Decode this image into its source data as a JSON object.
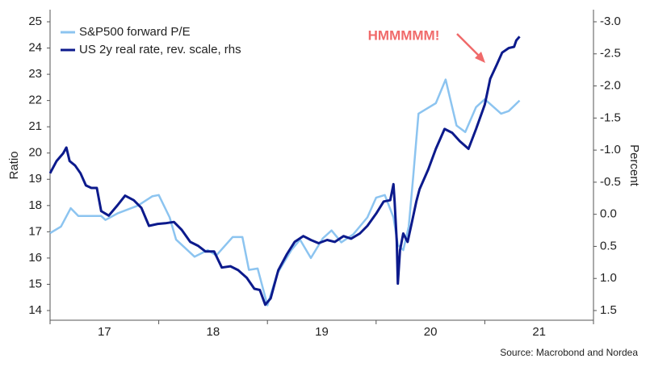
{
  "chart_data": {
    "type": "line",
    "ylabel": "Ratio",
    "y2label": "Percent",
    "annotation": "HMMMMM!",
    "source": "Source: Macrobond and Nordea",
    "xlim": [
      2017,
      2022
    ],
    "xticks": [
      2017,
      2018,
      2019,
      2020,
      2021,
      2022
    ],
    "xtick_labels": [
      {
        "value": 2017.5,
        "label": "17"
      },
      {
        "value": 2018.5,
        "label": "18"
      },
      {
        "value": 2019.5,
        "label": "19"
      },
      {
        "value": 2020.5,
        "label": "20"
      },
      {
        "value": 2021.5,
        "label": "21"
      }
    ],
    "ylim": [
      14,
      25
    ],
    "yticks": [
      14,
      15,
      16,
      17,
      18,
      19,
      20,
      21,
      22,
      23,
      24,
      25
    ],
    "y2lim": [
      1.5,
      -3.0
    ],
    "y2ticks": [
      {
        "value": -3,
        "label": "-3.0"
      },
      -2.5,
      {
        "value": -2,
        "label": "-2.0"
      },
      -1.5,
      {
        "value": -1,
        "label": "-1.0"
      },
      -0.5,
      {
        "value": 0,
        "label": "0.0"
      },
      0.5,
      {
        "value": 1,
        "label": "1.0"
      },
      1.5
    ],
    "grid": false,
    "legend": "upper left",
    "series": [
      {
        "name": "S&P500 forward P/E",
        "color": "#8cc4f0",
        "x": [
          2017.0,
          2017.1,
          2017.19,
          2017.26,
          2017.47,
          2017.51,
          2017.62,
          2017.81,
          2017.94,
          2018.0,
          2018.1,
          2018.16,
          2018.33,
          2018.45,
          2018.53,
          2018.68,
          2018.77,
          2018.83,
          2018.91,
          2019.0,
          2019.09,
          2019.22,
          2019.3,
          2019.4,
          2019.51,
          2019.59,
          2019.68,
          2019.79,
          2019.92,
          2020.0,
          2020.08,
          2020.16,
          2020.2,
          2020.25,
          2020.3,
          2020.34,
          2020.39,
          2020.55,
          2020.64,
          2020.74,
          2020.82,
          2020.92,
          2021.0,
          2021.15,
          2021.22,
          2021.32
        ],
        "values": [
          16.95,
          17.2,
          17.9,
          17.6,
          17.6,
          17.45,
          17.7,
          18.0,
          18.35,
          18.4,
          17.55,
          16.7,
          16.05,
          16.3,
          16.1,
          16.8,
          16.8,
          15.55,
          15.6,
          14.2,
          15.4,
          16.3,
          16.7,
          16.0,
          16.75,
          17.05,
          16.6,
          16.9,
          17.55,
          18.3,
          18.4,
          17.55,
          16.5,
          16.3,
          17.2,
          19.05,
          21.5,
          21.9,
          22.8,
          21.05,
          20.8,
          21.75,
          22.05,
          21.5,
          21.6,
          22.0
        ]
      },
      {
        "name": "US 2y real rate, rev. scale, rhs",
        "color": "#0c1a8c",
        "axis": "y2",
        "x": [
          2017.0,
          2017.06,
          2017.12,
          2017.15,
          2017.18,
          2017.23,
          2017.28,
          2017.33,
          2017.38,
          2017.43,
          2017.47,
          2017.54,
          2017.62,
          2017.69,
          2017.77,
          2017.84,
          2017.91,
          2017.99,
          2018.06,
          2018.14,
          2018.21,
          2018.29,
          2018.36,
          2018.43,
          2018.51,
          2018.58,
          2018.66,
          2018.73,
          2018.81,
          2018.88,
          2018.93,
          2018.98,
          2019.03,
          2019.1,
          2019.18,
          2019.25,
          2019.33,
          2019.4,
          2019.47,
          2019.55,
          2019.62,
          2019.7,
          2019.77,
          2019.85,
          2019.92,
          2020.0,
          2020.07,
          2020.13,
          2020.16,
          2020.17,
          2020.19,
          2020.2,
          2020.22,
          2020.25,
          2020.29,
          2020.33,
          2020.37,
          2020.4,
          2020.48,
          2020.55,
          2020.63,
          2020.7,
          2020.77,
          2020.85,
          2020.92,
          2021.0,
          2021.05,
          2021.11,
          2021.16,
          2021.22,
          2021.27,
          2021.29,
          2021.32
        ],
        "values": [
          -0.64,
          -0.83,
          -0.95,
          -1.04,
          -0.83,
          -0.76,
          -0.64,
          -0.45,
          -0.41,
          -0.41,
          -0.05,
          0.02,
          -0.14,
          -0.29,
          -0.22,
          -0.1,
          0.18,
          0.15,
          0.14,
          0.12,
          0.24,
          0.43,
          0.49,
          0.58,
          0.58,
          0.83,
          0.81,
          0.87,
          0.99,
          1.16,
          1.18,
          1.41,
          1.31,
          0.87,
          0.62,
          0.43,
          0.34,
          0.4,
          0.45,
          0.4,
          0.43,
          0.34,
          0.38,
          0.3,
          0.18,
          -0.01,
          -0.2,
          -0.22,
          -0.47,
          -0.2,
          0.43,
          1.08,
          0.56,
          0.3,
          0.43,
          0.12,
          -0.2,
          -0.39,
          -0.7,
          -1.02,
          -1.33,
          -1.27,
          -1.14,
          -1.02,
          -1.33,
          -1.71,
          -2.11,
          -2.33,
          -2.52,
          -2.59,
          -2.61,
          -2.71,
          -2.77
        ]
      }
    ]
  }
}
